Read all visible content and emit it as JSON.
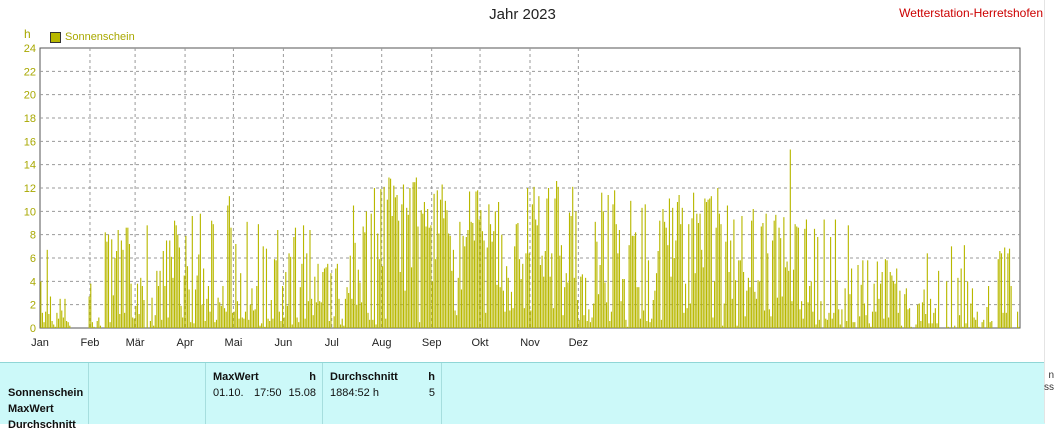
{
  "header": {
    "title": "Jahr 2023",
    "station": "Wetterstation-Herretshofen",
    "unit": "h",
    "legend_label": "Sonnenschein",
    "right_edge_text": [
      "n",
      "ss"
    ]
  },
  "chart_data": {
    "type": "bar",
    "title": "Jahr 2023",
    "ylabel": "h",
    "ylim": [
      0,
      24
    ],
    "yticks": [
      0,
      2,
      4,
      6,
      8,
      10,
      12,
      14,
      16,
      18,
      20,
      22,
      24
    ],
    "month_labels": [
      "Jan",
      "Feb",
      "Mär",
      "Apr",
      "Mai",
      "Jun",
      "Jul",
      "Aug",
      "Sep",
      "Okt",
      "Nov",
      "Dez"
    ],
    "grid": true,
    "legend_position": "top-left",
    "series": [
      {
        "name": "Sonnenschein",
        "color": "#b8b800",
        "values": [
          4.0,
          1.3,
          0.5,
          1.4,
          6.7,
          1.2,
          2.7,
          0.6,
          0.3,
          0.1,
          1.3,
          0.8,
          2.5,
          1.5,
          0.9,
          2.5,
          0.6,
          0.5,
          0.2,
          0.0,
          0.0,
          0.0,
          0.0,
          0.0,
          0.0,
          0.0,
          0.0,
          0.0,
          0.0,
          0.0,
          2.7,
          3.8,
          0.5,
          0.1,
          0.0,
          0.6,
          0.9,
          0.2,
          0.0,
          0.0,
          8.2,
          7.4,
          8.0,
          0.5,
          7.6,
          2.8,
          6.0,
          6.6,
          8.4,
          1.2,
          7.5,
          6.7,
          1.3,
          8.6,
          8.6,
          7.2,
          3.8,
          0.9,
          0.8,
          1.9,
          3.8,
          1.2,
          4.3,
          3.6,
          2.4,
          0.0,
          8.8,
          0.0,
          0.6,
          2.6,
          0.2,
          1.1,
          4.9,
          3.6,
          4.9,
          0.7,
          6.6,
          3.6,
          7.5,
          0.9,
          7.5,
          6.1,
          4.3,
          9.2,
          8.8,
          8.0,
          6.9,
          1.9,
          0.9,
          4.5,
          7.9,
          5.3,
          3.3,
          0.5,
          9.6,
          0.4,
          3.3,
          4.5,
          6.3,
          9.8,
          2.0,
          5.1,
          0.6,
          2.5,
          3.6,
          1.4,
          9.2,
          8.9,
          0.5,
          0.7,
          2.6,
          2.2,
          1.9,
          3.6,
          1.7,
          1.4,
          10.5,
          11.3,
          8.6,
          1.3,
          1.4,
          7.2,
          2.3,
          0.8,
          4.7,
          0.9,
          0.8,
          1.4,
          9.1,
          0.7,
          2.0,
          3.4,
          1.5,
          1.6,
          3.6,
          8.9,
          0.2,
          0.4,
          7.0,
          0.1,
          6.8,
          0.8,
          0.6,
          2.4,
          0.8,
          5.9,
          5.8,
          8.4,
          1.4,
          0.6,
          3.6,
          0.9,
          4.8,
          1.9,
          6.4,
          6.1,
          0.3,
          7.8,
          8.6,
          0.9,
          0.5,
          3.5,
          5.5,
          8.8,
          0.8,
          6.4,
          2.3,
          8.4,
          2.5,
          1.1,
          4.4,
          2.2,
          5.5,
          2.3,
          2.2,
          4.8,
          5.1,
          5.2,
          5.5,
          0.6,
          4.7,
          0.0,
          1.0,
          5.1,
          5.5,
          2.5,
          0.3,
          0.8,
          0.2,
          2.5,
          3.5,
          3.0,
          6.2,
          2.5,
          10.5,
          7.3,
          2.0,
          5.0,
          3.9,
          2.2,
          8.7,
          8.2,
          10.0,
          1.3,
          0.7,
          9.8,
          0.7,
          12.0,
          0.3,
          8.1,
          5.9,
          11.9,
          5.3,
          12.1,
          0.8,
          11.0,
          12.9,
          12.8,
          9.6,
          12.2,
          11.2,
          11.4,
          9.2,
          4.8,
          10.6,
          12.3,
          3.2,
          10.3,
          9.7,
          12.0,
          5.2,
          12.5,
          12.5,
          12.9,
          8.7,
          0.5,
          10.1,
          9.8,
          10.8,
          8.7,
          10.2,
          8.6,
          8.8,
          4.0,
          11.5,
          5.9,
          11.8,
          8.1,
          11.0,
          12.3,
          9.4,
          10.9,
          10.1,
          8.1,
          7.9,
          4.9,
          6.7,
          1.5,
          1.1,
          4.3,
          9.1,
          3.3,
          7.9,
          7.0,
          7.8,
          8.4,
          11.7,
          9.1,
          9.0,
          7.5,
          11.7,
          11.8,
          9.3,
          10.1,
          8.3,
          7.5,
          1.3,
          6.9,
          10.6,
          8.9,
          7.4,
          8.3,
          10.0,
          3.7,
          10.8,
          3.5,
          8.0,
          3.2,
          1.4,
          5.3,
          4.3,
          1.5,
          3.1,
          1.7,
          7.0,
          8.9,
          9.0,
          5.9,
          4.2,
          5.5,
          1.7,
          6.4,
          12.0,
          6.4,
          1.5,
          10.6,
          12.1,
          9.3,
          8.8,
          11.3,
          5.4,
          6.2,
          4.4,
          6.6,
          11.1,
          12.0,
          4.4,
          6.4,
          1.7,
          11.1,
          12.6,
          12.1,
          6.2,
          7.1,
          1.1,
          3.5,
          4.7,
          3.9,
          9.9,
          9.6,
          12.1,
          4.3,
          10.0,
          2.4,
          0.7,
          4.4,
          4.6,
          1.1,
          4.3,
          0.6,
          1.6,
          0.5,
          0.9,
          2.1,
          9.1,
          7.4,
          2.9,
          5.4,
          11.6,
          10.0,
          3.9,
          2.2,
          11.4,
          0.6,
          1.4,
          10.6,
          11.8,
          8.9,
          6.4,
          8.4,
          2.3,
          4.2,
          4.2,
          0.7,
          0.1,
          7.1,
          10.9,
          7.9,
          7.9,
          8.2,
          3.5,
          3.5,
          0.8,
          10.3,
          1.5,
          10.6,
          0.6,
          5.8,
          0.5,
          0.8,
          2.4,
          3.2,
          4.7,
          6.6,
          9.2,
          0.7,
          10.2,
          9.1,
          8.6,
          7.1,
          11.1,
          4.4,
          10.3,
          6.0,
          7.5,
          10.8,
          11.4,
          8.9,
          10.3,
          1.3,
          3.8,
          1.7,
          8.9,
          2.1,
          9.4,
          11.6,
          4.7,
          9.8,
          9.0,
          9.8,
          6.7,
          5.2,
          11.1,
          10.8,
          11.0,
          11.1,
          11.3,
          0.9,
          4.0,
          8.6,
          12.0,
          9.8,
          8.9,
          0.2,
          2.1,
          7.4,
          10.5,
          4.8,
          7.5,
          2.5,
          9.3,
          4.1,
          0.2,
          5.8,
          5.8,
          9.6,
          4.8,
          1.0,
          3.2,
          4.3,
          3.5,
          9.2,
          10.2,
          3.1,
          2.5,
          4.1,
          4.0,
          8.7,
          9.0,
          1.5,
          9.8,
          6.4,
          1.6,
          1.0,
          7.5,
          9.2,
          9.7,
          2.6,
          8.6,
          7.7,
          2.7,
          9.5,
          5.2,
          5.7,
          4.9,
          15.3,
          2.3,
          5.0,
          8.9,
          8.7,
          8.6,
          1.6,
          2.3,
          0.8,
          8.5,
          9.3,
          2.2,
          3.6,
          4.0,
          1.4,
          8.5,
          0.3,
          7.8,
          0.7,
          2.3,
          0.0,
          9.3,
          0.8,
          0.7,
          1.3,
          7.8,
          0.8,
          1.3,
          9.3,
          4.1,
          1.6,
          0.3,
          1.6,
          0.0,
          3.4,
          0.6,
          8.8,
          2.9,
          5.1,
          0.5,
          0.5,
          0.0,
          5.4,
          1.0,
          3.7,
          5.8,
          2.1,
          1.1,
          5.8,
          0.4,
          0.1,
          1.4,
          3.8,
          1.4,
          5.7,
          2.5,
          3.8,
          4.8,
          0.8,
          5.9,
          5.8,
          0.9,
          4.8,
          4.5,
          4.0,
          3.8,
          5.1,
          1.3,
          3.2,
          0.2,
          0.0,
          2.9,
          3.4,
          1.6,
          1.7,
          0.1,
          0.0,
          0.0,
          0.3,
          2.0,
          2.1,
          0.6,
          2.2,
          3.3,
          1.2,
          6.4,
          0.4,
          2.5,
          0.4,
          1.3,
          1.7,
          0.4,
          4.9,
          0.0,
          0.0,
          0.0,
          0.0,
          4.0,
          0.1,
          0.0,
          7.0,
          0.0,
          0.2,
          0.0,
          4.3,
          1.1,
          5.1,
          0.1,
          7.1,
          0.4,
          4.0,
          0.0,
          2.1,
          3.4,
          0.9,
          0.7,
          1.4,
          0.1,
          0.0,
          0.5,
          0.7,
          0.0,
          1.8,
          3.6,
          0.5,
          0.6,
          0.0,
          0.0,
          0.0,
          5.9,
          6.6,
          6.4,
          1.3,
          6.9,
          1.3,
          6.4,
          6.8,
          3.6,
          0.0,
          0.0,
          0.0,
          1.4,
          0.1
        ]
      }
    ]
  },
  "stats": {
    "row_labels": [
      "Sonnenschein",
      "MaxWert",
      "Durchschnitt"
    ],
    "maxwert": {
      "header": "MaxWert",
      "unit": "h",
      "date": "01.10.",
      "time": "17:50",
      "value": "15.08"
    },
    "durchschnitt": {
      "header": "Durchschnitt",
      "unit": "h",
      "value": "1884:52 h",
      "count": "5"
    }
  }
}
